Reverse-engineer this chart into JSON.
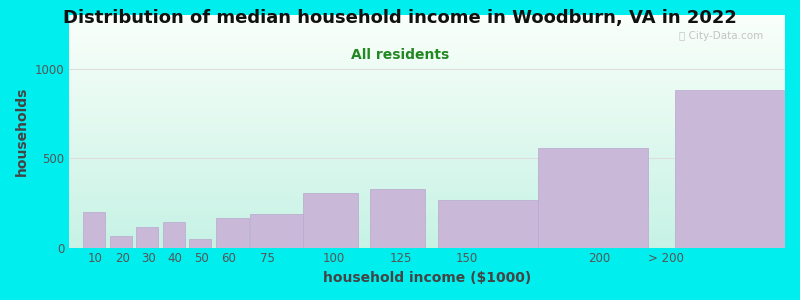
{
  "title": "Distribution of median household income in Woodburn, VA in 2022",
  "subtitle": "All residents",
  "xlabel": "household income ($1000)",
  "ylabel": "households",
  "background_outer": "#00EEEE",
  "bar_color": "#c9b8d8",
  "bar_edge_color": "#b8a8cc",
  "categories": [
    "10",
    "20",
    "30",
    "40",
    "50",
    "60",
    "75",
    "100",
    "125",
    "150",
    "200",
    "> 200"
  ],
  "values": [
    200,
    65,
    115,
    145,
    50,
    165,
    185,
    305,
    330,
    265,
    555,
    880
  ],
  "bar_lefts": [
    5,
    15,
    25,
    35,
    45,
    55,
    67.5,
    87.5,
    112.5,
    137.5,
    175,
    225
  ],
  "bar_widths": [
    9,
    9,
    9,
    9,
    9,
    13.5,
    22.5,
    22.5,
    22.5,
    45,
    45,
    90
  ],
  "xlim": [
    0,
    270
  ],
  "xtick_positions": [
    10,
    20,
    30,
    40,
    50,
    60,
    75,
    100,
    125,
    150,
    200,
    225
  ],
  "xtick_labels": [
    "10",
    "20",
    "30",
    "40",
    "50",
    "60",
    "75",
    "100",
    "125",
    "150",
    "200",
    "> 200"
  ],
  "ylim": [
    0,
    1300
  ],
  "yticks": [
    0,
    500,
    1000
  ],
  "title_fontsize": 13,
  "subtitle_fontsize": 10,
  "axis_label_fontsize": 10,
  "tick_fontsize": 8.5,
  "watermark_text": "ⓘ City-Data.com"
}
